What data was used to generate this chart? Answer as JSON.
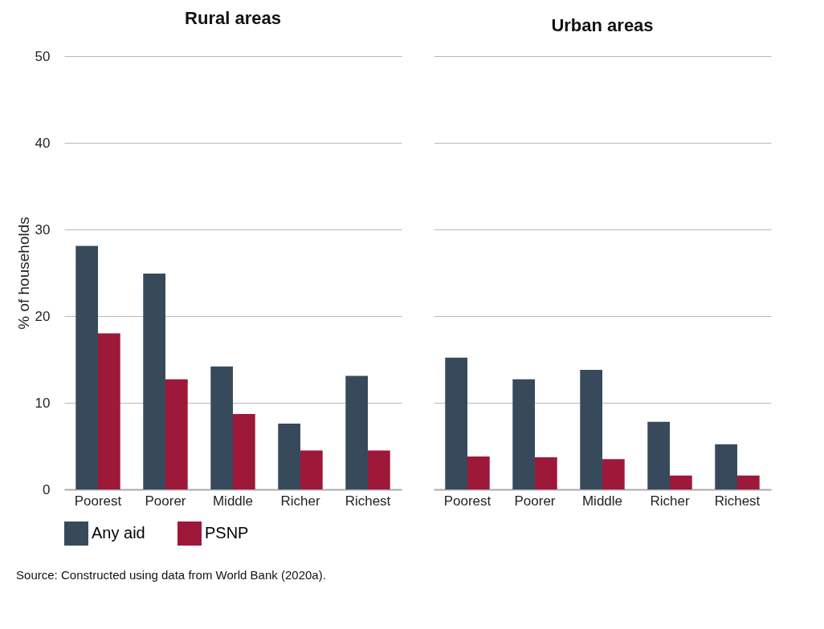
{
  "chart_data": [
    {
      "type": "bar",
      "title": "Rural areas",
      "ylabel": "% of households",
      "categories": [
        "Poorest",
        "Poorer",
        "Middle",
        "Richer",
        "Richest"
      ],
      "ylim": [
        0,
        50
      ],
      "yticks": [
        0,
        10,
        20,
        30,
        40,
        50
      ],
      "grid": "y",
      "legend": "bottom",
      "series": [
        {
          "name": "Any aid",
          "color": "#374a5c",
          "values": [
            28.1,
            24.9,
            14.2,
            7.6,
            13.1
          ]
        },
        {
          "name": "PSNP",
          "color": "#9e1839",
          "values": [
            18.0,
            12.7,
            8.7,
            4.5,
            4.5
          ]
        }
      ],
      "annotations": [
        "Source: Constructed using data from World Bank (2020a)."
      ]
    },
    {
      "type": "bar",
      "title": "Urban areas",
      "categories": [
        "Poorest",
        "Poorer",
        "Middle",
        "Richer",
        "Richest"
      ],
      "ylim": [
        0,
        50
      ],
      "yticks": [
        0,
        10,
        20,
        30,
        40,
        50
      ],
      "grid": "y",
      "legend": "bottom",
      "tick_labels": "x",
      "series": [
        {
          "name": "Any aid",
          "color": "#374a5c",
          "values": [
            15.2,
            12.7,
            13.8,
            7.8,
            5.2
          ]
        },
        {
          "name": "PSNP",
          "color": "#9e1839",
          "values": [
            3.8,
            3.7,
            3.5,
            1.6,
            1.6
          ]
        }
      ]
    }
  ]
}
